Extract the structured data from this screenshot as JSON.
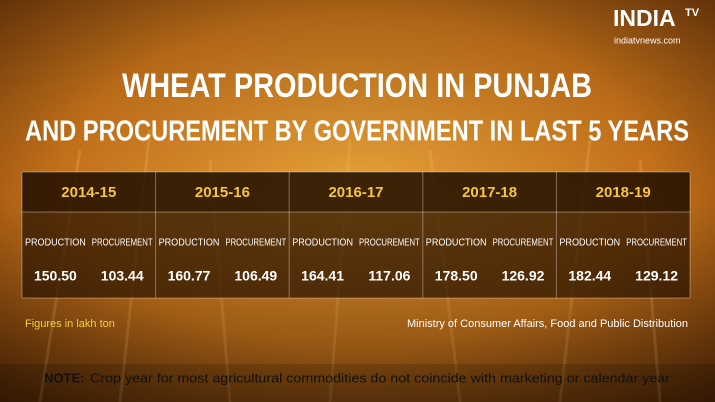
{
  "logo": {
    "brand": "INDIA",
    "superscript": "TV",
    "url": "indiatvnews.com"
  },
  "title": {
    "line1": "WHEAT PRODUCTION IN PUNJAB",
    "line2": "AND PROCUREMENT BY GOVERNMENT IN LAST 5 YEARS"
  },
  "table": {
    "groups": [
      {
        "year": "2014-15",
        "columns": [
          "PRODUCTION",
          "PROCUREMENT"
        ],
        "values": [
          "150.50",
          "103.44"
        ]
      },
      {
        "year": "2015-16",
        "columns": [
          "PRODUCTION",
          "PROCUREMENT"
        ],
        "values": [
          "160.77",
          "106.49"
        ]
      },
      {
        "year": "2016-17",
        "columns": [
          "PRODUCTION",
          "PROCUREMENT"
        ],
        "values": [
          "164.41",
          "117.06"
        ]
      },
      {
        "year": "2017-18",
        "columns": [
          "PRODUCTION",
          "PROCUREMENT"
        ],
        "values": [
          "178.50",
          "126.92"
        ]
      },
      {
        "year": "2018-19",
        "columns": [
          "PRODUCTION",
          "PROCUREMENT"
        ],
        "values": [
          "182.44",
          "129.12"
        ]
      }
    ]
  },
  "units_note": "Figures in lakh ton",
  "source": "Ministry of Consumer Affairs, Food and Public Distribution",
  "note": {
    "label": "NOTE:",
    "text": "Crop year for most agricultural commodities do not coincide with marketing or calendar year"
  }
}
